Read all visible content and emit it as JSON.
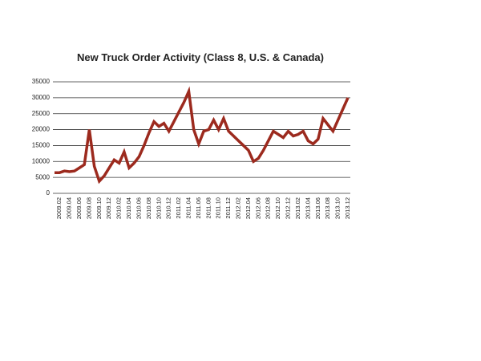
{
  "chart_data": {
    "type": "line",
    "title": "New Truck Order Activity (Class 8, U.S. & Canada)",
    "categories": [
      null,
      "2009.02",
      null,
      "2009.04",
      null,
      "2009.06",
      null,
      "2009.08",
      null,
      "2009.10",
      null,
      "2009.12",
      null,
      "2010.02",
      null,
      "2010.04",
      null,
      "2010.06",
      null,
      "2010.08",
      null,
      "2010.10",
      null,
      "2010.12",
      null,
      "2011.02",
      null,
      "2011.04",
      null,
      "2011.06",
      null,
      "2011.08",
      null,
      "2011.10",
      null,
      "2011.12",
      null,
      "2012.02",
      null,
      "2012.04",
      null,
      "2012.06",
      null,
      "2012.08",
      null,
      "2012.10",
      null,
      "2012.12",
      null,
      "2013.02",
      null,
      "2013.04",
      null,
      "2013.06",
      null,
      "2013.08",
      null,
      "2013.10",
      null,
      "2013.12"
    ],
    "values": [
      6500,
      6500,
      7000,
      6800,
      7000,
      8000,
      9000,
      20000,
      8500,
      3800,
      5500,
      8000,
      10500,
      9500,
      13000,
      8000,
      9500,
      11500,
      15000,
      19000,
      22500,
      21000,
      22000,
      19500,
      22500,
      25500,
      28500,
      32000,
      20000,
      15500,
      19500,
      20000,
      23000,
      20000,
      23500,
      19500,
      18000,
      16500,
      15000,
      13500,
      10000,
      11000,
      13500,
      16500,
      19500,
      18500,
      17500,
      19500,
      18000,
      18500,
      19500,
      16500,
      15500,
      17000,
      23500,
      21500,
      19500,
      23000,
      26500,
      30000
    ],
    "color": "#9c2a1e",
    "ylim": [
      0,
      35000
    ],
    "yticks": [
      0,
      5000,
      10000,
      15000,
      20000,
      25000,
      30000,
      35000
    ],
    "grid": true
  }
}
